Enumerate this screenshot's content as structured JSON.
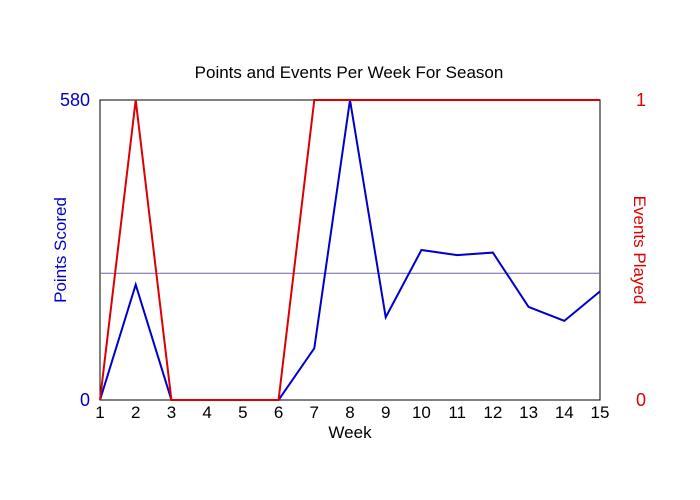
{
  "chart_data": {
    "type": "line",
    "title": "Points and Events Per Week For Season",
    "xlabel": "Week",
    "ylabel_left": "Points Scored",
    "ylabel_right": "Events Played",
    "x": [
      1,
      2,
      3,
      4,
      5,
      6,
      7,
      8,
      9,
      10,
      11,
      12,
      13,
      14,
      15
    ],
    "x_tick_labels": [
      "1",
      "2",
      "3",
      "4",
      "5",
      "6",
      "7",
      "8",
      "9",
      "10",
      "11",
      "12",
      "13",
      "14",
      "15"
    ],
    "ylim_left": [
      0,
      580
    ],
    "ylim_right": [
      0,
      1
    ],
    "y_left_tick_labels": [
      "0",
      "580"
    ],
    "y_right_tick_labels": [
      "0",
      "1"
    ],
    "reference_line_left": 245,
    "series": [
      {
        "axis": "left",
        "color": "#0000cc",
        "values": [
          0,
          223,
          0,
          0,
          0,
          0,
          100,
          580,
          160,
          290,
          280,
          285,
          180,
          153,
          210
        ]
      },
      {
        "axis": "right",
        "color": "#dd0000",
        "values": [
          0,
          1,
          0,
          0,
          0,
          0,
          1,
          1,
          1,
          1,
          1,
          1,
          1,
          1,
          1
        ]
      }
    ],
    "reference_line_color": "#6666aa",
    "left_axis_color": "#0000cc",
    "right_axis_color": "#dd0000",
    "grid": false,
    "legend": "none"
  }
}
